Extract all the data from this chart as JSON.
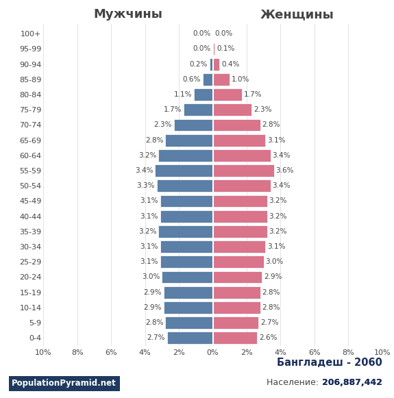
{
  "age_groups": [
    "0-4",
    "5-9",
    "10-14",
    "15-19",
    "20-24",
    "25-29",
    "30-34",
    "35-39",
    "40-44",
    "45-49",
    "50-54",
    "55-59",
    "60-64",
    "65-69",
    "70-74",
    "75-79",
    "80-84",
    "85-89",
    "90-94",
    "95-99",
    "100+"
  ],
  "male": [
    2.7,
    2.8,
    2.9,
    2.9,
    3.0,
    3.1,
    3.1,
    3.2,
    3.1,
    3.1,
    3.3,
    3.4,
    3.2,
    2.8,
    2.3,
    1.7,
    1.1,
    0.6,
    0.2,
    0.0,
    0.0
  ],
  "female": [
    2.6,
    2.7,
    2.8,
    2.8,
    2.9,
    3.0,
    3.1,
    3.2,
    3.2,
    3.2,
    3.4,
    3.6,
    3.4,
    3.1,
    2.8,
    2.3,
    1.7,
    1.0,
    0.4,
    0.1,
    0.0
  ],
  "male_color": "#5b7fa6",
  "female_color": "#d9748a",
  "title_country": "Бангладеш - 2060",
  "title_population": "Население: ",
  "title_population_bold": "206,887,442",
  "label_male": "Мужчины",
  "label_female": "Женщины",
  "watermark": "PopulationPyramid.net",
  "watermark_bg": "#1e3a5f",
  "xlim": 10,
  "background_color": "#ffffff",
  "bar_height": 0.8,
  "title_color": "#1a2e5a",
  "label_fontsize": 13,
  "tick_fontsize": 8,
  "bar_label_fontsize": 7.5
}
